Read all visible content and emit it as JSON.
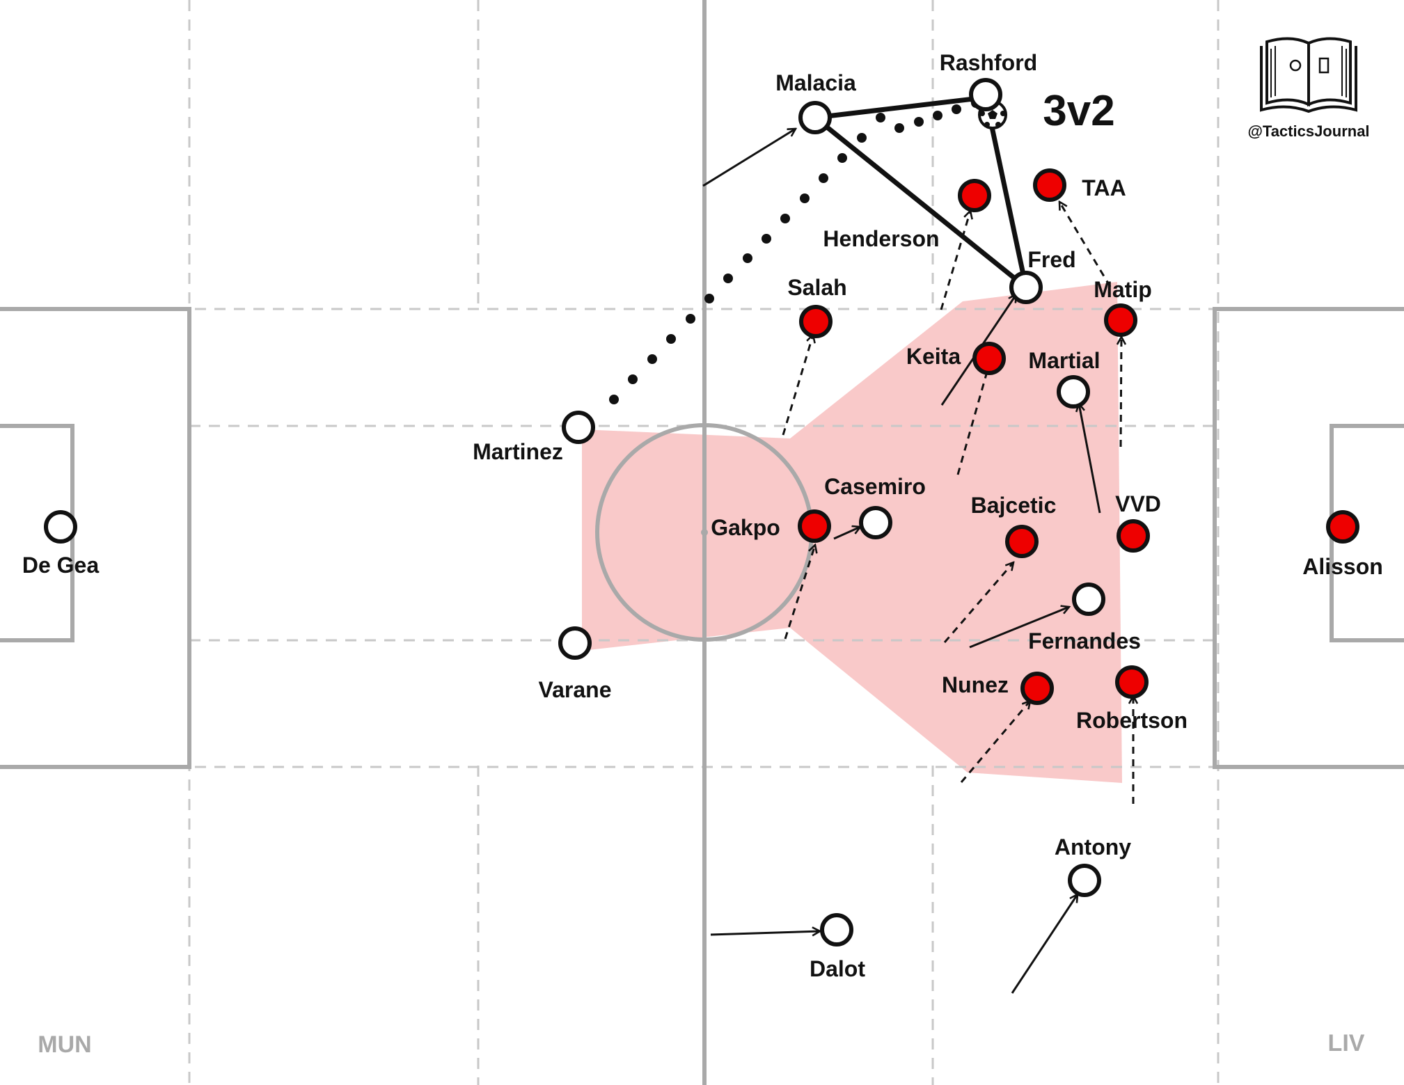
{
  "teams": {
    "home": "MUN",
    "away": "LIV"
  },
  "brand": {
    "handle": "@TacticsJournal",
    "logo": "open-book-pitch-icon"
  },
  "annotation": "3v2",
  "colors": {
    "home_player": "#ffffff",
    "away_player": "#ee0000",
    "zone": "#f9c9c9",
    "lines": "#b5b5b5"
  },
  "players": {
    "degea": "De Gea",
    "martinez": "Martinez",
    "varane": "Varane",
    "malacia": "Malacia",
    "rashford": "Rashford",
    "fred": "Fred",
    "casemiro": "Casemiro",
    "martial": "Martial",
    "fernandes": "Fernandes",
    "antony": "Antony",
    "dalot": "Dalot",
    "alisson": "Alisson",
    "vvd": "VVD",
    "matip": "Matip",
    "robertson": "Robertson",
    "taa": "TAA",
    "henderson": "Henderson",
    "salah": "Salah",
    "keita": "Keita",
    "bajcetic": "Bajcetic",
    "nunez": "Nunez",
    "gakpo": "Gakpo"
  }
}
